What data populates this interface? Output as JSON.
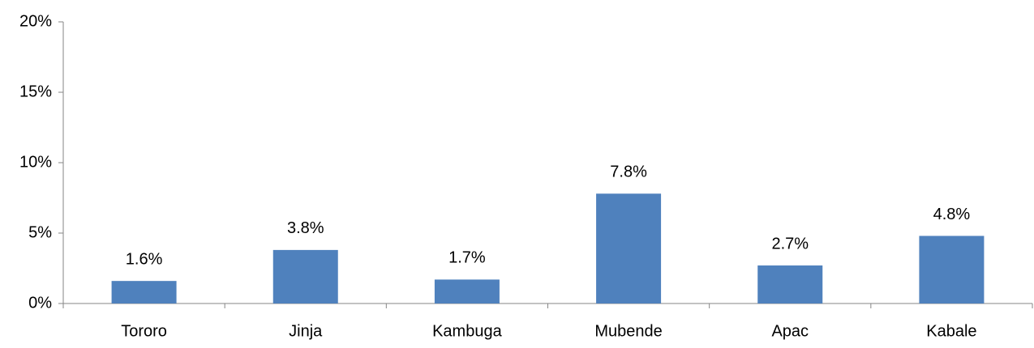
{
  "chart_data": {
    "type": "bar",
    "categories": [
      "Tororo",
      "Jinja",
      "Kambuga",
      "Mubende",
      "Apac",
      "Kabale"
    ],
    "values": [
      1.6,
      3.8,
      1.7,
      7.8,
      2.7,
      4.8
    ],
    "value_labels": [
      "1.6%",
      "3.8%",
      "1.7%",
      "7.8%",
      "2.7%",
      "4.8%"
    ],
    "color": "#4f81bd",
    "ylim": [
      0,
      20
    ],
    "yticks": [
      {
        "value": 0,
        "label": "0%"
      },
      {
        "value": 5,
        "label": "5%"
      },
      {
        "value": 10,
        "label": "10%"
      },
      {
        "value": 15,
        "label": "15%"
      },
      {
        "value": 20,
        "label": "20%"
      }
    ],
    "grid": false
  }
}
